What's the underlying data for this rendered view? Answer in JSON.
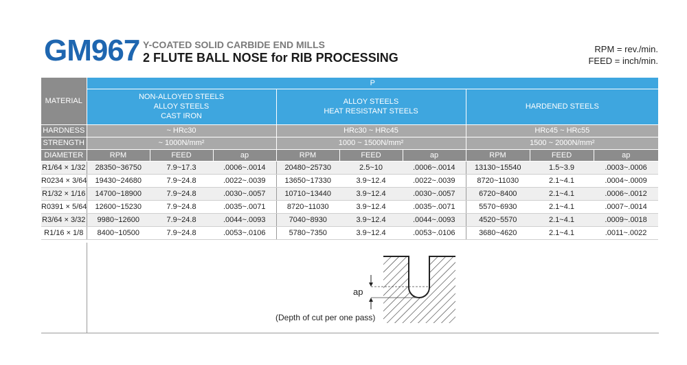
{
  "header": {
    "model": "GM967",
    "subtitle": "Y-COATED SOLID CARBIDE END MILLS",
    "title": "2 FLUTE BALL NOSE for RIB PROCESSING",
    "units_rpm": "RPM = rev./min.",
    "units_feed": "FEED = inch/min."
  },
  "table": {
    "material_label": "MATERIAL",
    "group_label": "P",
    "groups": [
      {
        "name_lines": [
          "NON-ALLOYED STEELS",
          "ALLOY STEELS",
          "CAST IRON"
        ],
        "hardness": "~ HRc30",
        "strength": "~ 1000N/mm²"
      },
      {
        "name_lines": [
          "ALLOY STEELS",
          "HEAT RESISTANT STEELS",
          ""
        ],
        "hardness": "HRc30 ~ HRc45",
        "strength": "1000 ~ 1500N/mm²"
      },
      {
        "name_lines": [
          "HARDENED STEELS",
          "",
          ""
        ],
        "hardness": "HRc45 ~ HRc55",
        "strength": "1500 ~ 2000N/mm²"
      }
    ],
    "hardness_label": "HARDNESS",
    "strength_label": "STRENGTH",
    "diameter_label": "DIAMETER",
    "col_rpm": "RPM",
    "col_feed": "FEED",
    "col_ap": "ap",
    "rows": [
      {
        "dia": "R1/64 × 1/32",
        "c": [
          "28350~36750",
          "7.9~17.3",
          ".0006~.0014",
          "20480~25730",
          "2.5~10",
          ".0006~.0014",
          "13130~15540",
          "1.5~3.9",
          ".0003~.0006"
        ]
      },
      {
        "dia": "R0234 × 3/64",
        "c": [
          "19430~24680",
          "7.9~24.8",
          ".0022~.0039",
          "13650~17330",
          "3.9~12.4",
          ".0022~.0039",
          "8720~11030",
          "2.1~4.1",
          ".0004~.0009"
        ]
      },
      {
        "dia": "R1/32 × 1/16",
        "c": [
          "14700~18900",
          "7.9~24.8",
          ".0030~.0057",
          "10710~13440",
          "3.9~12.4",
          ".0030~.0057",
          "6720~8400",
          "2.1~4.1",
          ".0006~.0012"
        ]
      },
      {
        "dia": "R0391 × 5/64",
        "c": [
          "12600~15230",
          "7.9~24.8",
          ".0035~.0071",
          "8720~11030",
          "3.9~12.4",
          ".0035~.0071",
          "5570~6930",
          "2.1~4.1",
          ".0007~.0014"
        ]
      },
      {
        "dia": "R3/64 × 3/32",
        "c": [
          "9980~12600",
          "7.9~24.8",
          ".0044~.0093",
          "7040~8930",
          "3.9~12.4",
          ".0044~.0093",
          "4520~5570",
          "2.1~4.1",
          ".0009~.0018"
        ]
      },
      {
        "dia": "R1/16 × 1/8",
        "c": [
          "8400~10500",
          "7.9~24.8",
          ".0053~.0106",
          "5780~7350",
          "3.9~12.4",
          ".0053~.0106",
          "3680~4620",
          "2.1~4.1",
          ".0011~.0022"
        ]
      }
    ]
  },
  "diagram": {
    "ap_label": "ap",
    "caption": "(Depth of cut per one pass)"
  }
}
